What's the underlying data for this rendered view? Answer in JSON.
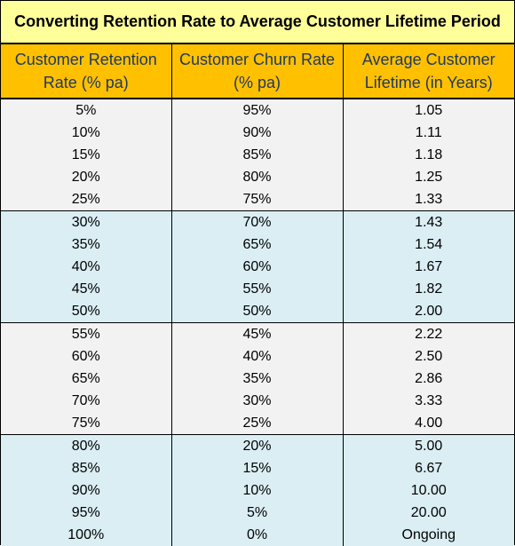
{
  "title": "Converting Retention Rate to Average Customer Lifetime Period",
  "headers": [
    [
      "Customer Retention",
      "Rate (% pa)"
    ],
    [
      "Customer Churn Rate",
      "(% pa)"
    ],
    [
      "Average Customer",
      "Lifetime (in Years)"
    ]
  ],
  "colors": {
    "title_bg": "#ffff99",
    "header_bg": "#ffc000",
    "header_text": "#1f3864",
    "band_grey": "#f2f2f2",
    "band_blue": "#daeef3"
  },
  "rows": [
    [
      "5%",
      "95%",
      "1.05"
    ],
    [
      "10%",
      "90%",
      "1.11"
    ],
    [
      "15%",
      "85%",
      "1.18"
    ],
    [
      "20%",
      "80%",
      "1.25"
    ],
    [
      "25%",
      "75%",
      "1.33"
    ],
    [
      "30%",
      "70%",
      "1.43"
    ],
    [
      "35%",
      "65%",
      "1.54"
    ],
    [
      "40%",
      "60%",
      "1.67"
    ],
    [
      "45%",
      "55%",
      "1.82"
    ],
    [
      "50%",
      "50%",
      "2.00"
    ],
    [
      "55%",
      "45%",
      "2.22"
    ],
    [
      "60%",
      "40%",
      "2.50"
    ],
    [
      "65%",
      "35%",
      "2.86"
    ],
    [
      "70%",
      "30%",
      "3.33"
    ],
    [
      "75%",
      "25%",
      "4.00"
    ],
    [
      "80%",
      "20%",
      "5.00"
    ],
    [
      "85%",
      "15%",
      "6.67"
    ],
    [
      "90%",
      "10%",
      "10.00"
    ],
    [
      "95%",
      "5%",
      "20.00"
    ],
    [
      "100%",
      "0%",
      "Ongoing"
    ]
  ]
}
